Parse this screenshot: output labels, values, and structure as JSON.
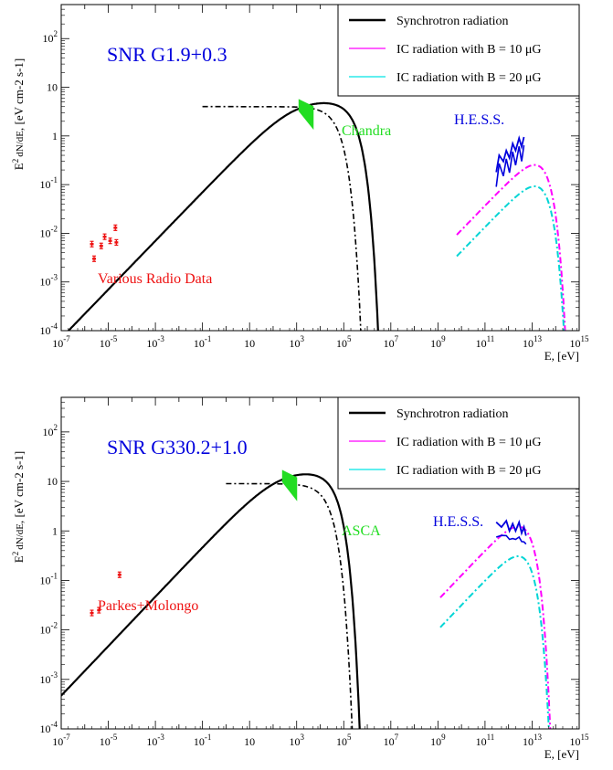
{
  "chart_data": [
    {
      "type": "line",
      "title": "",
      "annotation_title": "SNR G1.9+0.3",
      "x_label": "E, [eV]",
      "y_label_prefix": "E",
      "y_label_frac_num": "dN",
      "y_label_frac_den": "dE",
      "y_label_units": ", [eV cm-2 s-1]",
      "x_scale": "log",
      "y_scale": "log",
      "xlim": [
        1e-07,
        1000000000000000.0
      ],
      "ylim": [
        0.0001,
        500
      ],
      "x_ticks": [
        {
          "exp": "-7"
        },
        {
          "exp": "-5"
        },
        {
          "exp": "-3"
        },
        {
          "exp": "-1"
        },
        {
          "text": "10"
        },
        {
          "exp": "3"
        },
        {
          "exp": "5"
        },
        {
          "exp": "7"
        },
        {
          "exp": "9"
        },
        {
          "exp": "11"
        },
        {
          "exp": "13"
        },
        {
          "exp": "15"
        }
      ],
      "y_ticks": [
        {
          "exp": "-4"
        },
        {
          "exp": "-3"
        },
        {
          "exp": "-2"
        },
        {
          "exp": "-1"
        },
        {
          "text": "1"
        },
        {
          "text": "10"
        },
        {
          "exp": "2"
        }
      ],
      "legend": {
        "position": "top-right",
        "entries": [
          {
            "label": "Synchrotron radiation",
            "color": "#000000",
            "width": 2.4
          },
          {
            "label": "IC radiation with B = 10  μG",
            "color": "#ff00ff",
            "width": 1.2
          },
          {
            "label": "IC radiation with B = 20  μG",
            "color": "#00e5e5",
            "width": 1.2
          }
        ]
      },
      "annotations": [
        {
          "text": "Chandra",
          "color": "#22dd22"
        },
        {
          "text": "H.E.S.S.",
          "color": "#0000dd"
        },
        {
          "text": "Various Radio Data",
          "color": "#ee1111"
        }
      ],
      "radio_points": [
        {
          "x": 2e-06,
          "y": 0.006
        },
        {
          "x": 2.5e-06,
          "y": 0.003
        },
        {
          "x": 5e-06,
          "y": 0.0055
        },
        {
          "x": 7e-06,
          "y": 0.0085
        },
        {
          "x": 1.2e-05,
          "y": 0.007
        },
        {
          "x": 2e-05,
          "y": 0.013
        },
        {
          "x": 2.2e-05,
          "y": 0.0065
        }
      ],
      "synchrotron": {
        "peak_x": 1000,
        "peak_y": 3.5,
        "cutoff_x": 800000
      },
      "synchrotron_dashdot": {
        "flat_from_x": 0.1,
        "flat_y": 4.0,
        "cutoff_x": 150000
      },
      "ic_b10": {
        "peak_x": 1000000000000.0,
        "peak_y": 0.33,
        "start_x": 1000
      },
      "ic_b20": {
        "peak_x": 1000000000000.0,
        "peak_y": 0.12,
        "start_x": 30000
      },
      "hess_points": [
        [
          300000000000.0,
          0.18
        ],
        [
          400000000000.0,
          0.4
        ],
        [
          600000000000.0,
          0.3
        ],
        [
          800000000000.0,
          0.5
        ],
        [
          1100000000000.0,
          0.35
        ],
        [
          1500000000000.0,
          0.7
        ],
        [
          2000000000000.0,
          0.5
        ],
        [
          2800000000000.0,
          0.9
        ],
        [
          3600000000000.0,
          0.6
        ],
        [
          4500000000000.0,
          0.95
        ]
      ]
    },
    {
      "type": "line",
      "title": "",
      "annotation_title": "SNR G330.2+1.0",
      "x_label": "E, [eV]",
      "y_label_prefix": "E",
      "y_label_frac_num": "dN",
      "y_label_frac_den": "dE",
      "y_label_units": ", [eV cm-2 s-1]",
      "x_scale": "log",
      "y_scale": "log",
      "xlim": [
        1e-07,
        1000000000000000.0
      ],
      "ylim": [
        0.0001,
        500
      ],
      "x_ticks": [
        {
          "exp": "-7"
        },
        {
          "exp": "-5"
        },
        {
          "exp": "-3"
        },
        {
          "exp": "-1"
        },
        {
          "text": "10"
        },
        {
          "exp": "3"
        },
        {
          "exp": "5"
        },
        {
          "exp": "7"
        },
        {
          "exp": "9"
        },
        {
          "exp": "11"
        },
        {
          "exp": "13"
        },
        {
          "exp": "15"
        }
      ],
      "y_ticks": [
        {
          "exp": "-4"
        },
        {
          "exp": "-3"
        },
        {
          "exp": "-2"
        },
        {
          "exp": "-1"
        },
        {
          "text": "1"
        },
        {
          "text": "10"
        },
        {
          "exp": "2"
        }
      ],
      "legend": {
        "position": "top-right",
        "entries": [
          {
            "label": "Synchrotron radiation",
            "color": "#000000",
            "width": 2.4
          },
          {
            "label": "IC radiation with B = 10  μG",
            "color": "#ff00ff",
            "width": 1.2
          },
          {
            "label": "IC radiation with B = 20  μG",
            "color": "#00e5e5",
            "width": 1.2
          }
        ]
      },
      "annotations": [
        {
          "text": "ASCA",
          "color": "#22dd22"
        },
        {
          "text": "H.E.S.S.",
          "color": "#0000dd"
        },
        {
          "text": "Parkes+Molongo",
          "color": "#ee1111"
        }
      ],
      "radio_points": [
        {
          "x": 2e-06,
          "y": 0.022
        },
        {
          "x": 4e-06,
          "y": 0.025
        },
        {
          "x": 3e-05,
          "y": 0.13
        }
      ],
      "synchrotron": {
        "peak_x": 200,
        "peak_y": 10.5,
        "cutoff_x": 120000
      },
      "synchrotron_dashdot": {
        "flat_from_x": 1,
        "flat_y": 9.0,
        "cutoff_x": 60000
      },
      "ic_b10": {
        "peak_x": 200000000000.0,
        "peak_y": 1.6,
        "start_x": 300
      },
      "ic_b20": {
        "peak_x": 200000000000.0,
        "peak_y": 0.4,
        "start_x": 1500
      },
      "hess_points": [
        [
          300000000000.0,
          1.5
        ],
        [
          500000000000.0,
          1.2
        ],
        [
          800000000000.0,
          1.6
        ],
        [
          1100000000000.0,
          1.0
        ],
        [
          1500000000000.0,
          1.4
        ],
        [
          2000000000000.0,
          1.0
        ],
        [
          2800000000000.0,
          1.5
        ],
        [
          3600000000000.0,
          0.9
        ],
        [
          4500000000000.0,
          1.2
        ],
        [
          5500000000000.0,
          0.8
        ]
      ]
    }
  ]
}
